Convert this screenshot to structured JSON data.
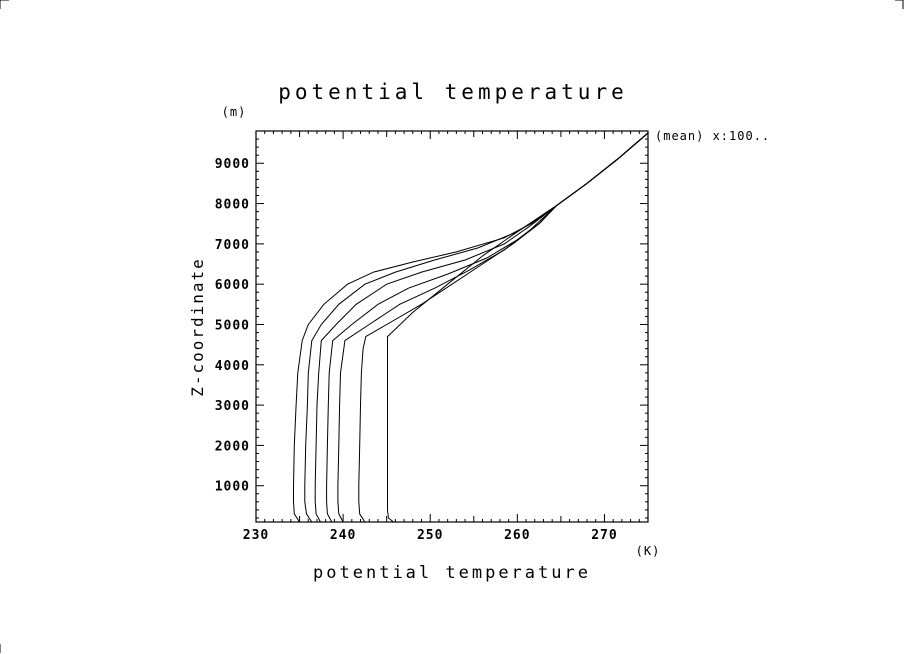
{
  "chart_data": {
    "type": "line",
    "title": "potential temperature",
    "xlabel": "potential temperature",
    "ylabel": "Z-coordinate",
    "x_unit": "(K)",
    "y_unit": "(m)",
    "annotation": "(mean) x:100..",
    "xlim": [
      230,
      275
    ],
    "ylim": [
      100,
      9800
    ],
    "xticks": [
      230,
      240,
      250,
      260,
      270
    ],
    "yticks": [
      1000,
      2000,
      3000,
      4000,
      5000,
      6000,
      7000,
      8000,
      9000
    ],
    "grid": false,
    "series": [
      {
        "points": [
          [
            235.0,
            100
          ],
          [
            234.4,
            300
          ],
          [
            234.3,
            600
          ],
          [
            234.3,
            1000
          ],
          [
            234.4,
            2000
          ],
          [
            234.6,
            3000
          ],
          [
            234.8,
            3800
          ],
          [
            235.3,
            4600
          ],
          [
            236.0,
            5000
          ],
          [
            237.8,
            5500
          ],
          [
            240.5,
            6000
          ],
          [
            243.5,
            6300
          ],
          [
            248.0,
            6550
          ],
          [
            253.0,
            6800
          ],
          [
            258.5,
            7150
          ],
          [
            262.0,
            7550
          ],
          [
            264.5,
            7950
          ],
          [
            268.0,
            8500
          ],
          [
            271.5,
            9100
          ],
          [
            275.0,
            9750
          ]
        ]
      },
      {
        "points": [
          [
            236.4,
            100
          ],
          [
            235.8,
            300
          ],
          [
            235.6,
            600
          ],
          [
            235.6,
            1000
          ],
          [
            235.7,
            2000
          ],
          [
            235.9,
            3000
          ],
          [
            236.0,
            3800
          ],
          [
            236.4,
            4600
          ],
          [
            237.5,
            5000
          ],
          [
            239.5,
            5500
          ],
          [
            242.5,
            6000
          ],
          [
            246.0,
            6300
          ],
          [
            250.5,
            6600
          ],
          [
            255.5,
            6900
          ],
          [
            260.0,
            7300
          ],
          [
            262.5,
            7650
          ],
          [
            264.5,
            7950
          ],
          [
            268.0,
            8500
          ],
          [
            271.5,
            9100
          ],
          [
            275.0,
            9750
          ]
        ]
      },
      {
        "points": [
          [
            237.4,
            100
          ],
          [
            236.9,
            300
          ],
          [
            236.8,
            600
          ],
          [
            236.8,
            1000
          ],
          [
            236.9,
            2000
          ],
          [
            237.0,
            3000
          ],
          [
            237.2,
            3800
          ],
          [
            237.5,
            4600
          ],
          [
            239.2,
            5000
          ],
          [
            241.5,
            5500
          ],
          [
            245.0,
            6000
          ],
          [
            249.0,
            6300
          ],
          [
            254.0,
            6600
          ],
          [
            258.5,
            7000
          ],
          [
            261.5,
            7450
          ],
          [
            264.5,
            7950
          ],
          [
            268.0,
            8500
          ],
          [
            271.5,
            9100
          ],
          [
            275.0,
            9750
          ]
        ]
      },
      {
        "points": [
          [
            238.7,
            100
          ],
          [
            238.2,
            300
          ],
          [
            238.1,
            600
          ],
          [
            238.1,
            1000
          ],
          [
            238.2,
            2000
          ],
          [
            238.3,
            3000
          ],
          [
            238.4,
            3800
          ],
          [
            238.8,
            4600
          ],
          [
            241.0,
            5000
          ],
          [
            244.0,
            5500
          ],
          [
            247.5,
            5900
          ],
          [
            252.0,
            6250
          ],
          [
            256.5,
            6650
          ],
          [
            260.0,
            7100
          ],
          [
            262.5,
            7500
          ],
          [
            264.5,
            7950
          ],
          [
            268.0,
            8500
          ],
          [
            271.5,
            9100
          ],
          [
            275.0,
            9750
          ]
        ]
      },
      {
        "points": [
          [
            240.0,
            100
          ],
          [
            239.5,
            300
          ],
          [
            239.4,
            600
          ],
          [
            239.4,
            1000
          ],
          [
            239.5,
            2000
          ],
          [
            239.6,
            3000
          ],
          [
            239.7,
            3800
          ],
          [
            240.2,
            4600
          ],
          [
            243.0,
            5000
          ],
          [
            246.5,
            5500
          ],
          [
            250.5,
            5900
          ],
          [
            254.5,
            6350
          ],
          [
            258.5,
            6850
          ],
          [
            261.5,
            7350
          ],
          [
            264.5,
            7950
          ],
          [
            268.0,
            8500
          ],
          [
            271.5,
            9100
          ],
          [
            275.0,
            9750
          ]
        ]
      },
      {
        "points": [
          [
            242.5,
            100
          ],
          [
            241.9,
            300
          ],
          [
            241.8,
            600
          ],
          [
            241.8,
            1000
          ],
          [
            241.9,
            2000
          ],
          [
            242.0,
            3000
          ],
          [
            242.1,
            3800
          ],
          [
            242.3,
            4400
          ],
          [
            242.6,
            4700
          ],
          [
            245.0,
            5000
          ],
          [
            249.0,
            5500
          ],
          [
            252.5,
            6000
          ],
          [
            256.0,
            6500
          ],
          [
            259.5,
            7000
          ],
          [
            262.5,
            7500
          ],
          [
            264.5,
            7950
          ],
          [
            268.0,
            8500
          ],
          [
            271.5,
            9100
          ],
          [
            275.0,
            9750
          ]
        ]
      },
      {
        "points": [
          [
            245.8,
            100
          ],
          [
            245.2,
            200
          ],
          [
            245.1,
            400
          ],
          [
            245.1,
            1000
          ],
          [
            245.1,
            2000
          ],
          [
            245.1,
            3000
          ],
          [
            245.1,
            4000
          ],
          [
            245.1,
            4700
          ],
          [
            248.0,
            5300
          ],
          [
            252.0,
            6000
          ],
          [
            256.0,
            6700
          ],
          [
            260.0,
            7300
          ],
          [
            264.5,
            7950
          ],
          [
            268.0,
            8500
          ],
          [
            271.5,
            9100
          ],
          [
            275.0,
            9750
          ]
        ]
      }
    ]
  }
}
